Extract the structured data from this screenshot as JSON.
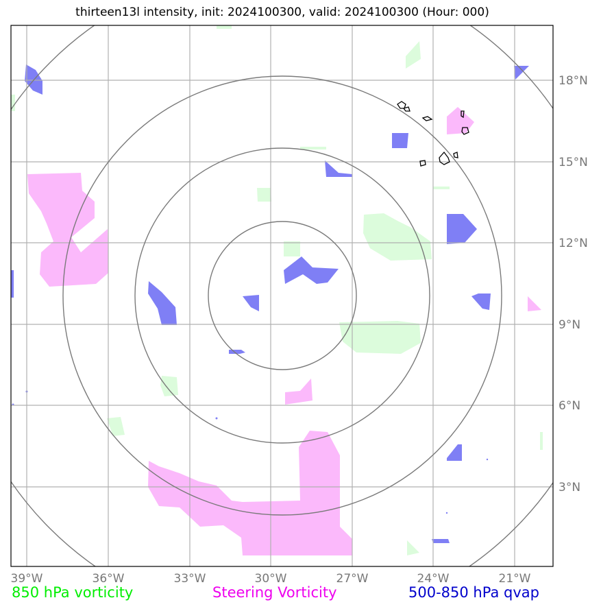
{
  "title": "thirteen13l intensity, init: 2024100300, valid: 2024100300 (Hour: 000)",
  "axes": {
    "lon_labels": [
      "39°W",
      "36°W",
      "33°W",
      "30°W",
      "27°W",
      "24°W",
      "21°W"
    ],
    "lat_labels": [
      "18°N",
      "15°N",
      "12°N",
      "9°N",
      "6°N",
      "3°N"
    ]
  },
  "legend": {
    "vort850": {
      "label": "850 hPa vorticity",
      "color": "#00ee00"
    },
    "steering": {
      "label": "Steering Vorticity",
      "color": "#ee00ee"
    },
    "qvap": {
      "label": "500-850 hPa qvap",
      "color": "#0000cc"
    }
  },
  "colors": {
    "vort850_fill": "#dcfcdc",
    "steering_fill": "#fbb9fb",
    "qvap_fill": "#7f7ff5",
    "grid": "#b0b0b0",
    "rings": "#7a7a7a",
    "coast": "#000000"
  }
}
